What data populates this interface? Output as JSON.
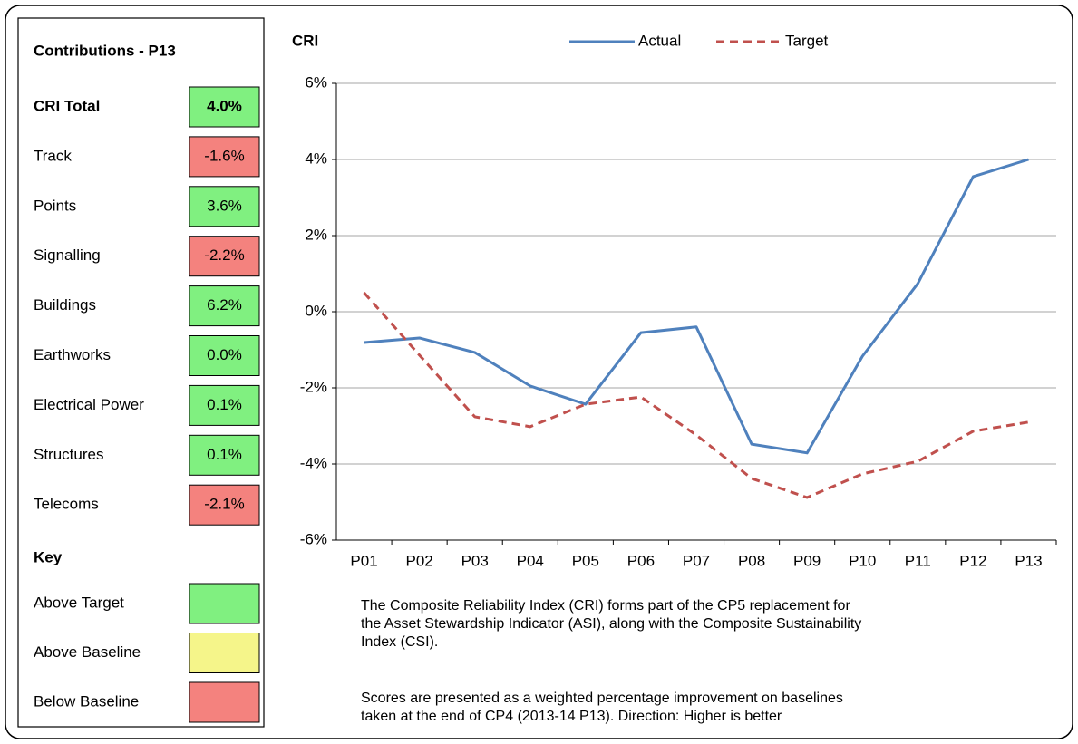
{
  "panel": {
    "title": "Contributions - P13",
    "rows": [
      {
        "label": "CRI Total",
        "value": "4.0%",
        "color": "#80f080"
      },
      {
        "label": "Track",
        "value": "-1.6%",
        "color": "#f4827e"
      },
      {
        "label": "Points",
        "value": "3.6%",
        "color": "#80f080"
      },
      {
        "label": "Signalling",
        "value": "-2.2%",
        "color": "#f4827e"
      },
      {
        "label": "Buildings",
        "value": "6.2%",
        "color": "#80f080"
      },
      {
        "label": "Earthworks",
        "value": "0.0%",
        "color": "#80f080"
      },
      {
        "label": "Electrical Power",
        "value": "0.1%",
        "color": "#80f080"
      },
      {
        "label": "Structures",
        "value": "0.1%",
        "color": "#80f080"
      },
      {
        "label": "Telecoms",
        "value": "-2.1%",
        "color": "#f4827e"
      }
    ],
    "key_title": "Key",
    "key": [
      {
        "label": "Above Target",
        "color": "#80f080"
      },
      {
        "label": "Above Baseline",
        "color": "#f5f58a"
      },
      {
        "label": "Below Baseline",
        "color": "#f4827e"
      }
    ]
  },
  "chart_data": {
    "type": "line",
    "y_label": "CRI",
    "categories": [
      "P01",
      "P02",
      "P03",
      "P04",
      "P05",
      "P06",
      "P07",
      "P08",
      "P09",
      "P10",
      "P11",
      "P12",
      "P13"
    ],
    "series": [
      {
        "name": "Actual",
        "color": "#4f81bd",
        "line_style": "solid",
        "values": [
          -0.81,
          -0.69,
          -1.07,
          -1.95,
          -2.43,
          -0.55,
          -0.4,
          -3.48,
          -3.71,
          -1.17,
          0.74,
          3.55,
          4.0
        ]
      },
      {
        "name": "Target",
        "color": "#c0504d",
        "line_style": "dashed",
        "values": [
          0.5,
          -1.14,
          -2.76,
          -3.02,
          -2.43,
          -2.24,
          -3.24,
          -4.38,
          -4.88,
          -4.26,
          -3.93,
          -3.14,
          -2.9
        ]
      }
    ],
    "ylim": [
      -6,
      6
    ],
    "yticks": [
      {
        "value": -6,
        "label": "-6%"
      },
      {
        "value": -4,
        "label": "-4%"
      },
      {
        "value": -2,
        "label": "-2%"
      },
      {
        "value": 0,
        "label": "0%"
      },
      {
        "value": 2,
        "label": "2%"
      },
      {
        "value": 4,
        "label": "4%"
      },
      {
        "value": 6,
        "label": "6%"
      }
    ],
    "grid": true,
    "legend": "top"
  },
  "notes": [
    [
      "The Composite Reliability Index (CRI) forms part of the CP5 replacement for",
      "the Asset Stewardship Indicator (ASI), along with the Composite Sustainability",
      "Index (CSI)."
    ],
    [
      "Scores are presented as a weighted percentage improvement on baselines",
      "taken at the end of CP4 (2013-14 P13). Direction: Higher is better"
    ]
  ]
}
